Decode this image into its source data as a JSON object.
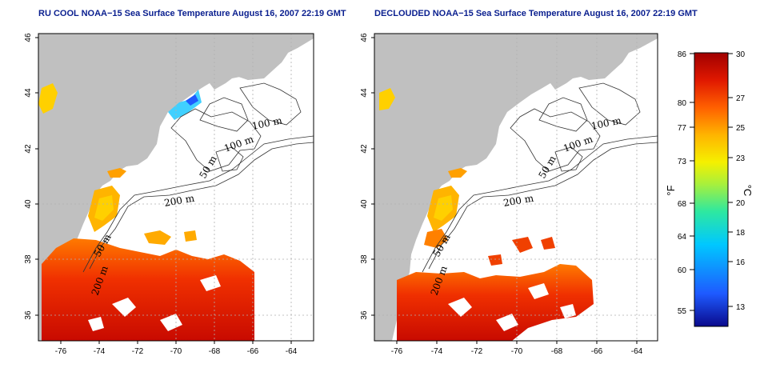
{
  "panels": [
    {
      "id": "left",
      "title": "RU COOL NOAA−15 Sea Surface Temperature August 16, 2007 22:19 GMT"
    },
    {
      "id": "right",
      "title": "DECLOUDED NOAA−15 Sea Surface Temperature August 16, 2007 22:19 GMT"
    }
  ],
  "map": {
    "lon_ticks": [
      "-76",
      "-74",
      "-72",
      "-70",
      "-68",
      "-66",
      "-64"
    ],
    "lat_ticks": [
      "46",
      "44",
      "42",
      "40",
      "38",
      "36"
    ],
    "lon_range": [
      -77,
      -63
    ],
    "lat_range": [
      35,
      46
    ],
    "land_color": "#c0c0c0",
    "bathymetry_labels": [
      "100 m",
      "100 m",
      "50 m",
      "200 m",
      "50 m",
      "200 m"
    ]
  },
  "colorbar": {
    "f_ticks": [
      "86",
      "80",
      "77",
      "73",
      "68",
      "64",
      "60",
      "55"
    ],
    "c_ticks": [
      "30",
      "27",
      "25",
      "23",
      "20",
      "18",
      "16",
      "13"
    ],
    "f_label": "°F",
    "c_label": "°C",
    "colors": [
      "#0a0a8c",
      "#1e5aff",
      "#00c8ff",
      "#2ee8a0",
      "#a8f03c",
      "#f5f000",
      "#ffb400",
      "#ff6000",
      "#e01800",
      "#a00000"
    ]
  }
}
